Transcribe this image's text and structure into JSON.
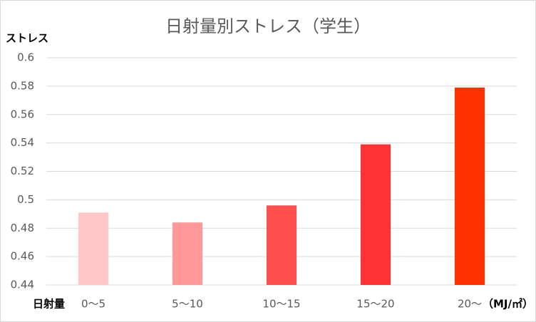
{
  "chart_data": {
    "type": "bar",
    "title": "日射量別ストレス（学生）",
    "y_label": "ストレス",
    "x_label": "日射量",
    "x_unit": "（MJ/㎡）",
    "categories": [
      "0～5",
      "5～10",
      "10～15",
      "15～20",
      "20～"
    ],
    "values": [
      0.491,
      0.484,
      0.496,
      0.539,
      0.579
    ],
    "colors": [
      "#ffc7c7",
      "#ff9999",
      "#ff5050",
      "#ff3333",
      "#ff3300"
    ],
    "ylim": [
      0.44,
      0.6
    ],
    "yticks": [
      0.44,
      0.46,
      0.48,
      0.5,
      0.52,
      0.54,
      0.56,
      0.58,
      0.6
    ],
    "grid": true
  }
}
